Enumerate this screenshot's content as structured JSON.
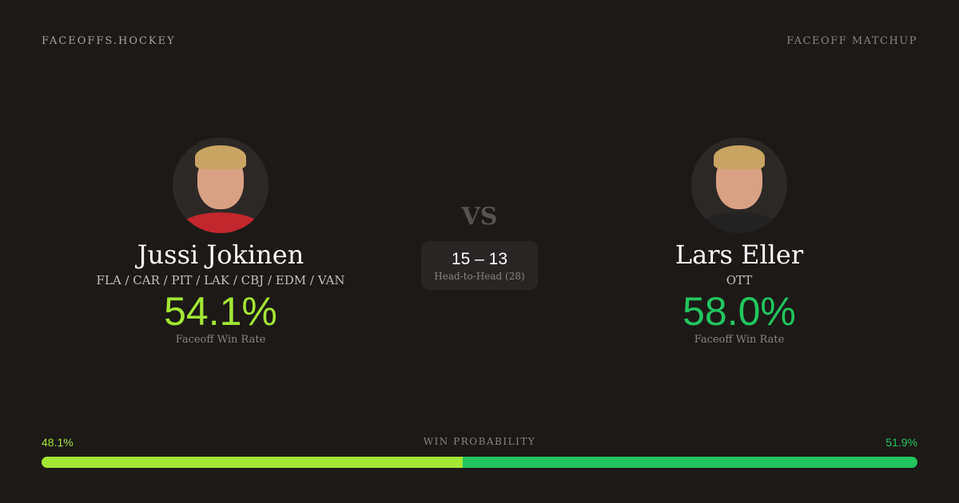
{
  "brand": "FACEOFFS.HOCKEY",
  "page_tag": "FACEOFF MATCHUP",
  "vs": "VS",
  "player1": {
    "name": "Jussi Jokinen",
    "teams": "FLA / CAR / PIT / LAK / CBJ / EDM / VAN",
    "win_rate": "54.1%",
    "win_rate_label": "Faceoff Win Rate"
  },
  "player2": {
    "name": "Lars Eller",
    "teams": "OTT",
    "win_rate": "58.0%",
    "win_rate_label": "Faceoff Win Rate"
  },
  "head_to_head": {
    "score": "15 – 13",
    "label": "Head-to-Head (28)"
  },
  "win_probability": {
    "label": "WIN PROBABILITY",
    "player1": "48.1%",
    "player2": "51.9%",
    "player1_fraction": 0.481
  },
  "colors": {
    "player1": "#a3e635",
    "player2": "#22c55e",
    "background": "#1c1917"
  }
}
